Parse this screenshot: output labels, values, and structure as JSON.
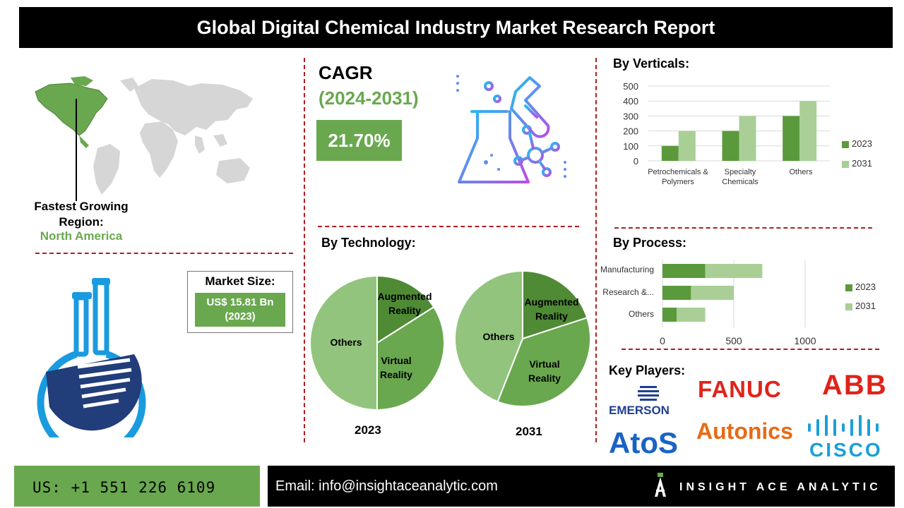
{
  "header": {
    "title": "Global Digital Chemical Industry Market Research Report"
  },
  "region": {
    "label": "Fastest Growing Region:",
    "value": "North America"
  },
  "market_size": {
    "label": "Market Size:",
    "value": "US$ 15.81 Bn (2023)"
  },
  "cagr": {
    "label": "CAGR",
    "period": "(2024-2031)",
    "value": "21.70%"
  },
  "technology": {
    "title": "By Technology:",
    "pies": [
      {
        "year": "2023",
        "slices": [
          {
            "label": "Augmented Reality",
            "share": 0.16,
            "color": "#4f8a35"
          },
          {
            "label": "Virtual Reality",
            "share": 0.34,
            "color": "#6aa84f"
          },
          {
            "label": "Others",
            "share": 0.5,
            "color": "#93c47d"
          }
        ]
      },
      {
        "year": "2031",
        "slices": [
          {
            "label": "Augmented Reality",
            "share": 0.2,
            "color": "#4f8a35"
          },
          {
            "label": "Virtual Reality",
            "share": 0.36,
            "color": "#6aa84f"
          },
          {
            "label": "Others",
            "share": 0.44,
            "color": "#93c47d"
          }
        ]
      }
    ]
  },
  "verticals": {
    "title": "By Verticals:",
    "chart_data": {
      "type": "bar",
      "categories": [
        "Petrochemicals & Polymers",
        "Specialty Chemicals",
        "Others"
      ],
      "series": [
        {
          "name": "2023",
          "values": [
            100,
            200,
            300
          ],
          "color": "#5b9a3c"
        },
        {
          "name": "2031",
          "values": [
            200,
            300,
            400
          ],
          "color": "#a9cf96"
        }
      ],
      "ylim": [
        0,
        500
      ],
      "yticks": [
        0,
        100,
        200,
        300,
        400,
        500
      ]
    }
  },
  "process": {
    "title": "By Process:",
    "chart_data": {
      "type": "bar",
      "orientation": "horizontal-stacked",
      "categories": [
        "Manufacturing",
        "Research &...",
        "Others"
      ],
      "series": [
        {
          "name": "2023",
          "values": [
            300,
            200,
            100
          ],
          "color": "#5b9a3c"
        },
        {
          "name": "2031",
          "values": [
            400,
            300,
            200
          ],
          "color": "#a9cf96"
        }
      ],
      "xlim": [
        0,
        1000
      ],
      "xticks": [
        0,
        500,
        1000
      ]
    }
  },
  "key_players": {
    "title": "Key Players:",
    "logos": [
      {
        "name": "EMERSON",
        "color": "#1f3f8f"
      },
      {
        "name": "FANUC",
        "color": "#e0231a"
      },
      {
        "name": "ABB",
        "color": "#e0231a"
      },
      {
        "name": "AtoS",
        "color": "#1a63c6"
      },
      {
        "name": "Autonics",
        "color": "#e96a12"
      },
      {
        "name": "CISCO",
        "color": "#1aa0d8"
      }
    ]
  },
  "footer": {
    "phone": "US: +1 551 226 6109",
    "email": "Email: info@insightaceanalytic.com",
    "brand": "INSIGHT ACE ANALYTIC"
  }
}
